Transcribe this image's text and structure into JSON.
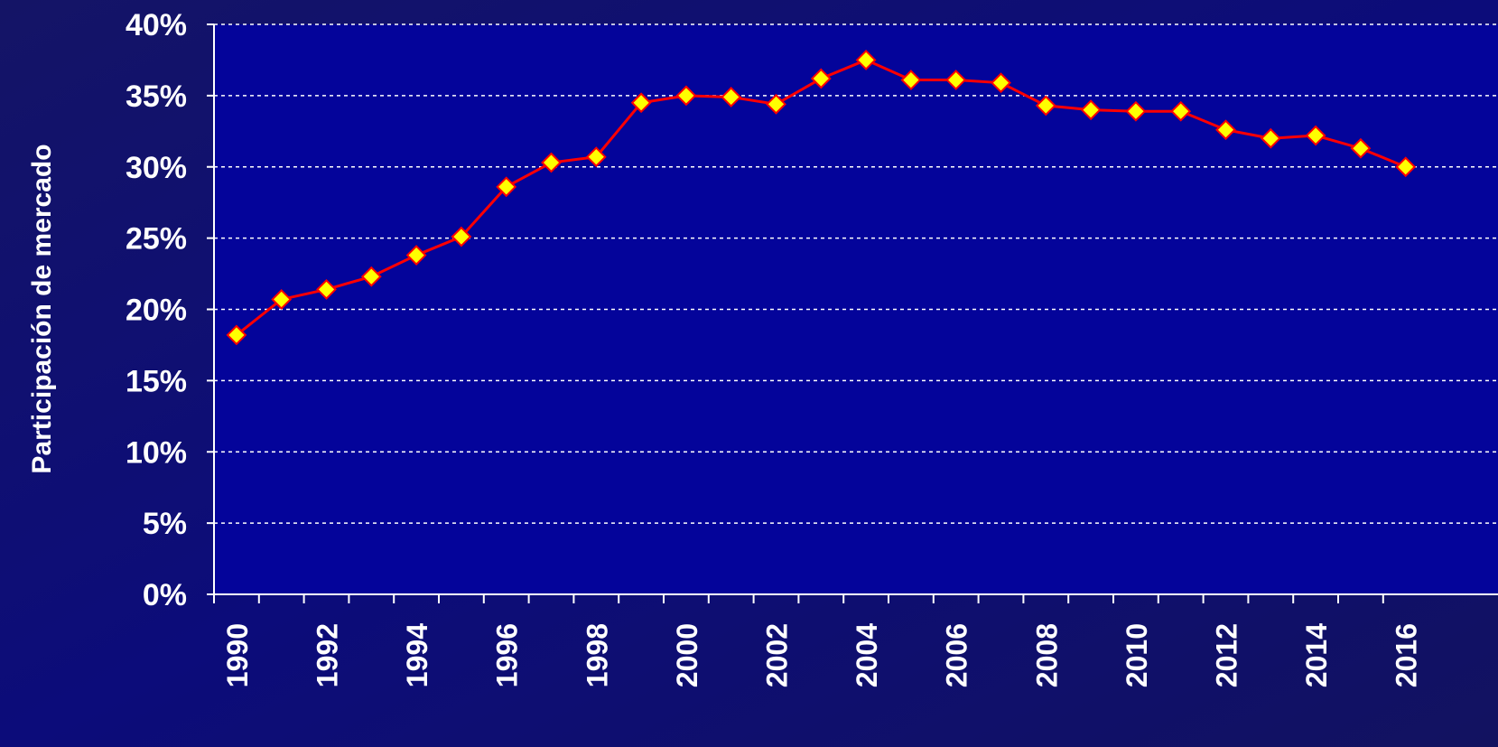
{
  "chart_data": {
    "type": "line",
    "y_axis_label": "Participación de mercado",
    "categories": [
      "1990",
      null,
      "1992",
      null,
      "1994",
      null,
      "1996",
      null,
      "1998",
      null,
      "2000",
      null,
      "2002",
      null,
      "2004",
      null,
      "2006",
      null,
      "2008",
      null,
      "2010",
      null,
      "2012",
      null,
      "2014",
      null,
      "2016"
    ],
    "series": [
      {
        "color": "#ff0000",
        "marker_color": "#ffff00",
        "values": [
          18.2,
          20.7,
          21.4,
          22.3,
          23.8,
          25.1,
          28.6,
          30.3,
          30.7,
          34.5,
          35.0,
          34.9,
          34.4,
          36.2,
          37.5,
          36.1,
          36.1,
          35.9,
          34.3,
          34.0,
          33.9,
          33.9,
          32.6,
          32.0,
          32.2,
          31.3,
          30.0
        ]
      }
    ],
    "ylim": [
      0,
      40
    ],
    "yticks": [
      {
        "value": 0,
        "label": "0%"
      },
      {
        "value": 5,
        "label": "5%"
      },
      {
        "value": 10,
        "label": "10%"
      },
      {
        "value": 15,
        "label": "15%"
      },
      {
        "value": 20,
        "label": "20%"
      },
      {
        "value": 25,
        "label": "25%"
      },
      {
        "value": 30,
        "label": "30%"
      },
      {
        "value": 35,
        "label": "35%"
      },
      {
        "value": 40,
        "label": "40%"
      }
    ],
    "grid": true
  }
}
